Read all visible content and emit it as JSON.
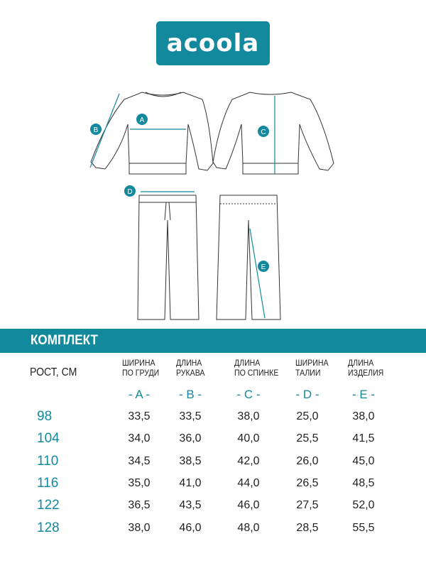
{
  "brand": {
    "logo_text": "acoola",
    "color": "#13899e"
  },
  "diagram_labels": [
    "A",
    "B",
    "C",
    "D",
    "E"
  ],
  "section_title": "КОМПЛЕКТ",
  "table": {
    "row_header": "РОСТ, СМ",
    "columns": [
      {
        "line1": "ШИРИНА",
        "line2": "ПО ГРУДИ",
        "letter": "- A -"
      },
      {
        "line1": "ДЛИНА",
        "line2": "РУКАВА",
        "letter": "- B -"
      },
      {
        "line1": "ДЛИНА",
        "line2": "ПО СПИНКЕ",
        "letter": "- C -"
      },
      {
        "line1": "ШИРИНА",
        "line2": "ТАЛИИ",
        "letter": "- D -"
      },
      {
        "line1": "ДЛИНА",
        "line2": "ИЗДЕЛИЯ",
        "letter": "- E -"
      }
    ],
    "rows": [
      {
        "height": "98",
        "values": [
          "33,5",
          "33,5",
          "38,0",
          "25,0",
          "38,0"
        ]
      },
      {
        "height": "104",
        "values": [
          "34,0",
          "36,0",
          "40,0",
          "25,5",
          "41,5"
        ]
      },
      {
        "height": "110",
        "values": [
          "34,5",
          "38,5",
          "42,0",
          "26,0",
          "45,0"
        ]
      },
      {
        "height": "116",
        "values": [
          "35,0",
          "41,0",
          "44,0",
          "26,5",
          "48,5"
        ]
      },
      {
        "height": "122",
        "values": [
          "36,5",
          "43,5",
          "46,0",
          "27,5",
          "52,0"
        ]
      },
      {
        "height": "128",
        "values": [
          "38,0",
          "46,0",
          "48,0",
          "28,5",
          "55,5"
        ]
      }
    ]
  }
}
